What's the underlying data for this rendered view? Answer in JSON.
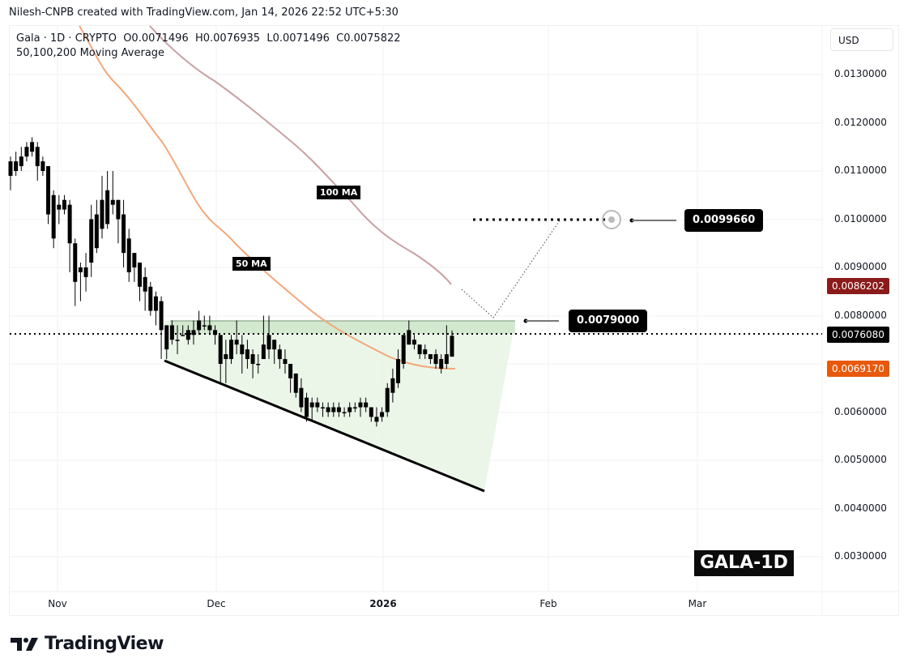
{
  "attribution": "Nilesh-CNPB created with TradingView.com, Jan 14, 2026 22:52 UTC+5:30",
  "legend": {
    "symbol_line": "Gala · 1D · CRYPTO  O0.0071496  H0.0076935  L0.0071496  C0.0075822",
    "indicator_line": "50,100,200 Moving Average"
  },
  "currency": "USD",
  "y_axis_ticks": [
    "0.0130000",
    "0.0120000",
    "0.0110000",
    "0.0100000",
    "0.0090000",
    "0.0080000",
    "0.0060000",
    "0.0050000",
    "0.0040000",
    "0.0030000"
  ],
  "x_axis_ticks": [
    "Nov",
    "Dec",
    "2026",
    "Feb",
    "Mar"
  ],
  "price_tags": {
    "ma100": {
      "value": "0.0086202",
      "color": "#8b1a1a"
    },
    "last": {
      "value": "0.0076080",
      "color": "#000000"
    },
    "ma50": {
      "value": "0.0069170",
      "color": "#e8590c"
    }
  },
  "callouts": {
    "target": "0.0099660",
    "resistance": "0.0079000"
  },
  "ma_labels": {
    "ma100": "100 MA",
    "ma50": "50 MA"
  },
  "chart_label": "GALA-1D",
  "brand": "TradingView",
  "colors": {
    "ma50": "#f4a77a",
    "ma100": "#c9a0a3",
    "pattern_fill": "#e6f4e3",
    "resistance_zone": "#cfe8cc",
    "candle": "#000000"
  },
  "chart_data": {
    "type": "candlestick",
    "title": "Gala · 1D · CRYPTO",
    "subtitle": "50,100,200 Moving Average",
    "xlabel": "",
    "ylabel": "USD",
    "ylim": [
      0.002,
      0.0138
    ],
    "x_ticks": [
      "Nov",
      "Dec",
      "2026",
      "Feb",
      "Mar"
    ],
    "ohlc_last": {
      "open": 0.0071496,
      "high": 0.0076935,
      "low": 0.0071496,
      "close": 0.0075822
    },
    "last_price": 0.007608,
    "candles": [
      [
        0.0112,
        0.0113,
        0.0106,
        0.0109
      ],
      [
        0.011,
        0.0114,
        0.0109,
        0.0112
      ],
      [
        0.0111,
        0.0115,
        0.011,
        0.0113
      ],
      [
        0.0113,
        0.0116,
        0.0112,
        0.0115
      ],
      [
        0.0114,
        0.0117,
        0.0113,
        0.0116
      ],
      [
        0.0115,
        0.0116,
        0.0108,
        0.0111
      ],
      [
        0.0112,
        0.0113,
        0.0109,
        0.011
      ],
      [
        0.0111,
        0.0111,
        0.0099,
        0.0101
      ],
      [
        0.0105,
        0.0106,
        0.0094,
        0.0096
      ],
      [
        0.0103,
        0.0105,
        0.0099,
        0.0102
      ],
      [
        0.0102,
        0.0105,
        0.0101,
        0.0104
      ],
      [
        0.0103,
        0.0104,
        0.0089,
        0.0095
      ],
      [
        0.0095,
        0.0096,
        0.0082,
        0.0087
      ],
      [
        0.0089,
        0.0091,
        0.0083,
        0.009
      ],
      [
        0.0088,
        0.0093,
        0.0085,
        0.009
      ],
      [
        0.0091,
        0.0103,
        0.0088,
        0.01
      ],
      [
        0.0094,
        0.0104,
        0.0093,
        0.0101
      ],
      [
        0.0098,
        0.0109,
        0.0096,
        0.0104
      ],
      [
        0.0099,
        0.011,
        0.0098,
        0.0106
      ],
      [
        0.0104,
        0.011,
        0.0101,
        0.0103
      ],
      [
        0.01,
        0.0104,
        0.0095,
        0.0104
      ],
      [
        0.0093,
        0.0104,
        0.009,
        0.0101
      ],
      [
        0.0096,
        0.0098,
        0.0087,
        0.0089
      ],
      [
        0.0093,
        0.0093,
        0.0087,
        0.009
      ],
      [
        0.0091,
        0.0091,
        0.0083,
        0.0086
      ],
      [
        0.0088,
        0.009,
        0.0081,
        0.0085
      ],
      [
        0.0086,
        0.0087,
        0.008,
        0.0081
      ],
      [
        0.0084,
        0.0085,
        0.0078,
        0.0081
      ],
      [
        0.0083,
        0.0084,
        0.0071,
        0.0077
      ],
      [
        0.0078,
        0.0078,
        0.0071,
        0.0073
      ],
      [
        0.0078,
        0.0079,
        0.0074,
        0.0075
      ],
      [
        0.0075,
        0.0078,
        0.0072,
        0.0075
      ],
      [
        0.0076,
        0.0078,
        0.0076,
        0.0076
      ],
      [
        0.0075,
        0.0078,
        0.0074,
        0.0077
      ],
      [
        0.0076,
        0.0079,
        0.0074,
        0.0077
      ],
      [
        0.0077,
        0.0081,
        0.0076,
        0.0079
      ],
      [
        0.0078,
        0.008,
        0.0077,
        0.0078
      ],
      [
        0.0078,
        0.008,
        0.0076,
        0.0077
      ],
      [
        0.0076,
        0.0078,
        0.0074,
        0.0077
      ],
      [
        0.0076,
        0.0076,
        0.0066,
        0.007
      ],
      [
        0.0071,
        0.0075,
        0.0066,
        0.0072
      ],
      [
        0.0071,
        0.0076,
        0.007,
        0.0075
      ],
      [
        0.0074,
        0.0079,
        0.0072,
        0.0075
      ],
      [
        0.0074,
        0.0076,
        0.0068,
        0.0072
      ],
      [
        0.0073,
        0.0075,
        0.0069,
        0.0071
      ],
      [
        0.0072,
        0.0073,
        0.0067,
        0.007
      ],
      [
        0.007,
        0.0072,
        0.0068,
        0.007
      ],
      [
        0.0071,
        0.008,
        0.0071,
        0.0074
      ],
      [
        0.0073,
        0.008,
        0.0071,
        0.0076
      ],
      [
        0.0075,
        0.0075,
        0.007,
        0.0073
      ],
      [
        0.0073,
        0.0074,
        0.0069,
        0.0071
      ],
      [
        0.0071,
        0.0073,
        0.0068,
        0.007
      ],
      [
        0.007,
        0.007,
        0.0064,
        0.0067
      ],
      [
        0.0068,
        0.0068,
        0.0063,
        0.0064
      ],
      [
        0.0065,
        0.0067,
        0.006,
        0.0061
      ],
      [
        0.0063,
        0.0064,
        0.0058,
        0.0059
      ],
      [
        0.0061,
        0.0063,
        0.0058,
        0.0062
      ],
      [
        0.0062,
        0.0063,
        0.006,
        0.0061
      ],
      [
        0.0061,
        0.0062,
        0.0059,
        0.0061
      ],
      [
        0.0061,
        0.0062,
        0.0059,
        0.006
      ],
      [
        0.006,
        0.0062,
        0.0059,
        0.0061
      ],
      [
        0.0061,
        0.0062,
        0.0059,
        0.006
      ],
      [
        0.006,
        0.0061,
        0.0059,
        0.006
      ],
      [
        0.006,
        0.0062,
        0.0059,
        0.0061
      ],
      [
        0.0061,
        0.0062,
        0.006,
        0.0061
      ],
      [
        0.0061,
        0.0063,
        0.0059,
        0.0062
      ],
      [
        0.0062,
        0.0063,
        0.006,
        0.0061
      ],
      [
        0.0061,
        0.0061,
        0.0058,
        0.0059
      ],
      [
        0.0059,
        0.0061,
        0.0057,
        0.0058
      ],
      [
        0.0059,
        0.0061,
        0.0058,
        0.006
      ],
      [
        0.006,
        0.0066,
        0.0059,
        0.0065
      ],
      [
        0.0064,
        0.0069,
        0.0062,
        0.0067
      ],
      [
        0.0066,
        0.0073,
        0.0065,
        0.0071
      ],
      [
        0.007,
        0.0076,
        0.0069,
        0.0076
      ],
      [
        0.0077,
        0.0079,
        0.0074,
        0.0074
      ],
      [
        0.0075,
        0.0076,
        0.0073,
        0.0074
      ],
      [
        0.0074,
        0.0074,
        0.0071,
        0.0072
      ],
      [
        0.0073,
        0.0074,
        0.0071,
        0.0072
      ],
      [
        0.0072,
        0.0072,
        0.007,
        0.0071
      ],
      [
        0.0072,
        0.0073,
        0.0069,
        0.007
      ],
      [
        0.0071,
        0.0072,
        0.0068,
        0.0069
      ],
      [
        0.007,
        0.0078,
        0.0069,
        0.0072
      ],
      [
        0.0071496,
        0.0076935,
        0.0071496,
        0.0075822
      ]
    ],
    "series": [
      {
        "name": "50 MA",
        "color": "#f4a77a",
        "last": 0.006917
      },
      {
        "name": "100 MA",
        "color": "#c9a0a3",
        "last": 0.0086202
      }
    ],
    "annotations": [
      {
        "type": "horizontal_line",
        "price": 0.0079,
        "label": "0.0079000",
        "style": "resistance"
      },
      {
        "type": "horizontal_line",
        "price": 0.009966,
        "label": "0.0099660",
        "style": "target",
        "dotted": true
      },
      {
        "type": "horizontal_line",
        "price": 0.007608,
        "style": "last_price",
        "dotted": true
      },
      {
        "type": "trendline",
        "label": "falling wedge support",
        "from": 0.0071,
        "to": 0.0044
      },
      {
        "type": "projection",
        "path": "pullback to 0.0079 then rally to 0.0099660"
      }
    ],
    "grid": true
  }
}
